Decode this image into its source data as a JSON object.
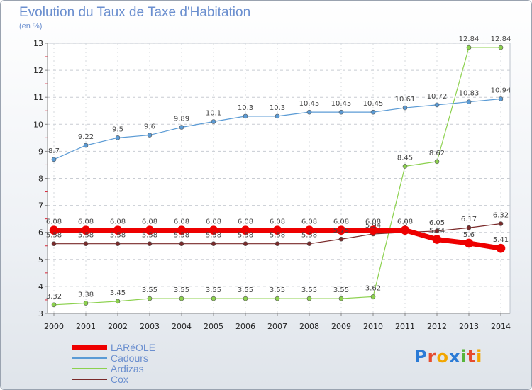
{
  "title": "Evolution du Taux de Taxe d'Habitation",
  "unit": "(en %)",
  "logo": "Proxiti",
  "chart_data": {
    "type": "line",
    "x": [
      2000,
      2001,
      2002,
      2003,
      2004,
      2005,
      2006,
      2007,
      2008,
      2009,
      2010,
      2011,
      2012,
      2013,
      2014
    ],
    "ylim": [
      3,
      13
    ],
    "yticks": [
      3,
      4,
      5,
      6,
      7,
      8,
      9,
      10,
      11,
      12,
      13
    ],
    "legend_position": "bottom-left",
    "series": [
      {
        "name": "LARéOLE",
        "color": "#ee0000",
        "values": [
          6.08,
          6.08,
          6.08,
          6.08,
          6.08,
          6.08,
          6.08,
          6.08,
          6.08,
          6.08,
          6.08,
          6.08,
          5.74,
          5.6,
          5.41
        ],
        "labels": [
          "6.08",
          "6.08",
          "6.08",
          "6.08",
          "6.08",
          "6.08",
          "6.08",
          "6.08",
          "6.08",
          "6.08",
          "6.08",
          "6.08",
          "5.74",
          "5.6",
          "5.41"
        ]
      },
      {
        "name": "Cadours",
        "color": "#5b9bd5",
        "values": [
          8.7,
          9.22,
          9.5,
          9.6,
          9.89,
          10.1,
          10.3,
          10.3,
          10.45,
          10.45,
          10.45,
          10.61,
          10.72,
          10.83,
          10.94
        ],
        "labels": [
          "8.7",
          "9.22",
          "9.5",
          "9.6",
          "9.89",
          "10.1",
          "10.3",
          "10.3",
          "10.45",
          "10.45",
          "10.45",
          "10.61",
          "10.72",
          "10.83",
          "10.94"
        ]
      },
      {
        "name": "Ardizas",
        "color": "#8cd14e",
        "values": [
          3.32,
          3.38,
          3.45,
          3.55,
          3.55,
          3.55,
          3.55,
          3.55,
          3.55,
          3.55,
          3.62,
          8.45,
          8.62,
          12.84,
          12.84
        ],
        "labels": [
          "3.32",
          "3.38",
          "3.45",
          "3.55",
          "3.55",
          "3.55",
          "3.55",
          "3.55",
          "3.55",
          "3.55",
          "3.62",
          "8.45",
          "8.62",
          "12.84",
          "12.84"
        ]
      },
      {
        "name": "Cox",
        "color": "#7a2a2a",
        "values": [
          5.58,
          5.58,
          5.58,
          5.58,
          5.58,
          5.58,
          5.58,
          5.58,
          5.58,
          5.75,
          5.94,
          6.0,
          6.05,
          6.17,
          6.32
        ],
        "labels": [
          "5.58",
          "5.58",
          "5.58",
          "5.58",
          "5.58",
          "5.58",
          "5.58",
          "5.58",
          "5.58",
          "5.75",
          "5.94",
          "6",
          "6.05",
          "6.17",
          "6.32"
        ]
      }
    ]
  }
}
